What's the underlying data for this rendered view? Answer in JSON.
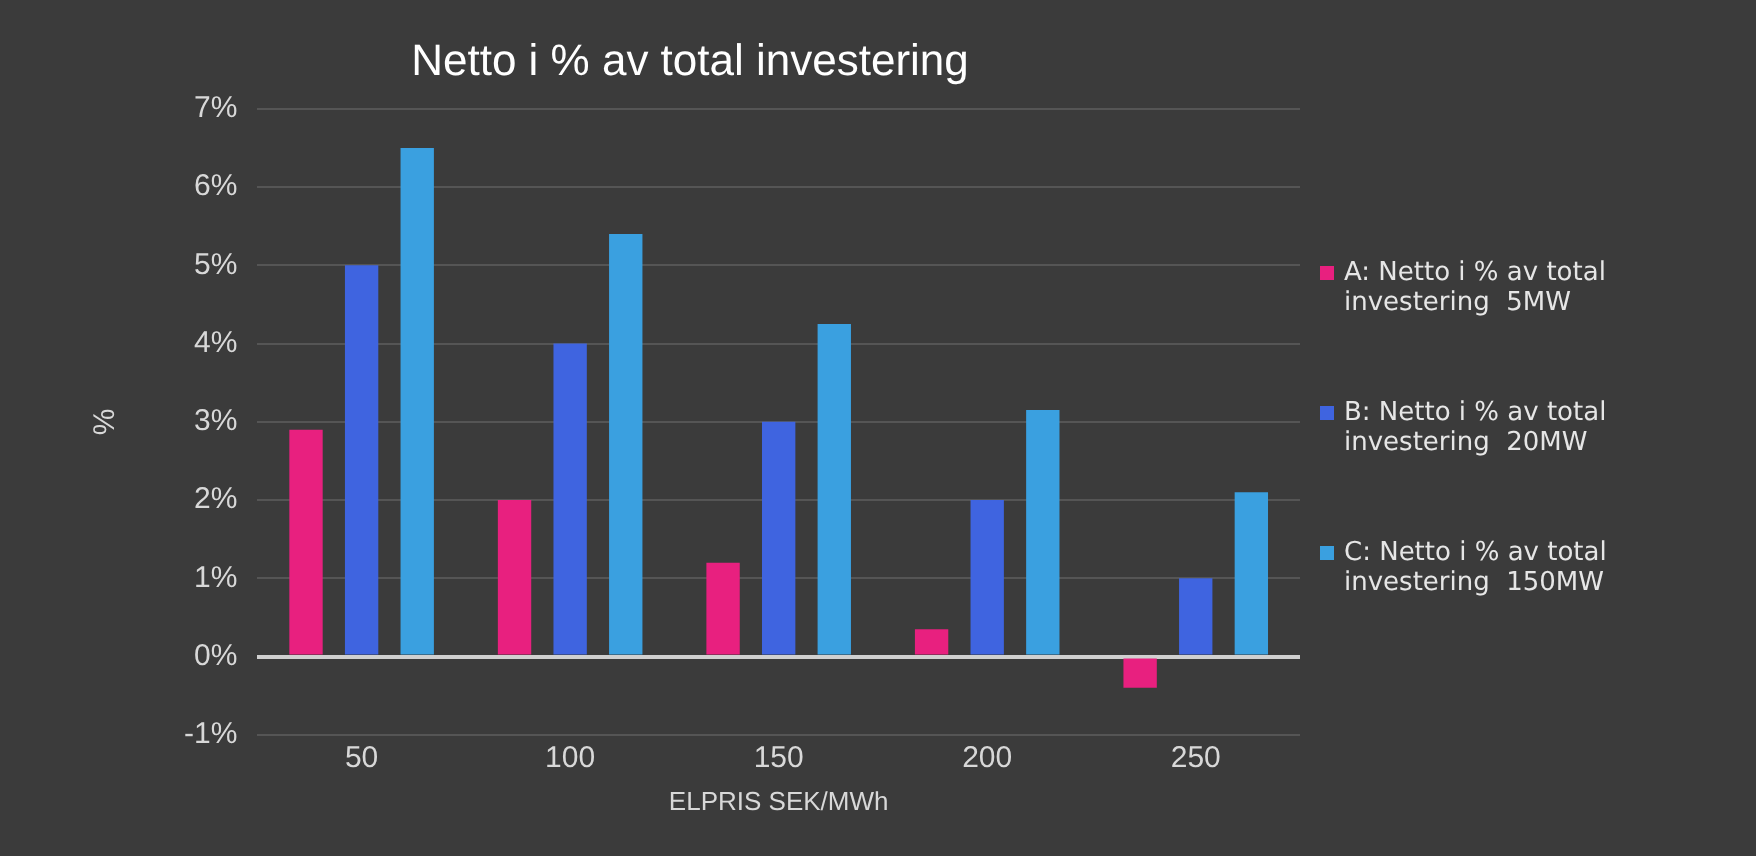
{
  "chart_data": {
    "type": "bar",
    "title": "Netto i % av total investering",
    "xlabel": "ELPRIS SEK/MWh",
    "ylabel": "%",
    "categories": [
      "50",
      "100",
      "150",
      "200",
      "250"
    ],
    "series": [
      {
        "name": "A: Netto i % av total investering  5MW",
        "color": "#e8207f",
        "values": [
          2.9,
          2.0,
          1.2,
          0.35,
          -0.4
        ]
      },
      {
        "name": "B: Netto i % av total investering  20MW",
        "color": "#3f64e0",
        "values": [
          5.0,
          4.0,
          3.0,
          2.0,
          1.0
        ]
      },
      {
        "name": "C: Netto i % av total investering  150MW",
        "color": "#3aa0e0",
        "values": [
          6.5,
          5.4,
          4.25,
          3.15,
          2.1
        ]
      }
    ],
    "ylim": [
      -1,
      7
    ],
    "yticks": [
      {
        "value": -1,
        "label": "-1%"
      },
      {
        "value": 0,
        "label": "0%"
      },
      {
        "value": 1,
        "label": "1%"
      },
      {
        "value": 2,
        "label": "2%"
      },
      {
        "value": 3,
        "label": "3%"
      },
      {
        "value": 4,
        "label": "4%"
      },
      {
        "value": 5,
        "label": "5%"
      },
      {
        "value": 6,
        "label": "6%"
      },
      {
        "value": 7,
        "label": "7%"
      }
    ],
    "grid": "y",
    "legend": "right"
  }
}
